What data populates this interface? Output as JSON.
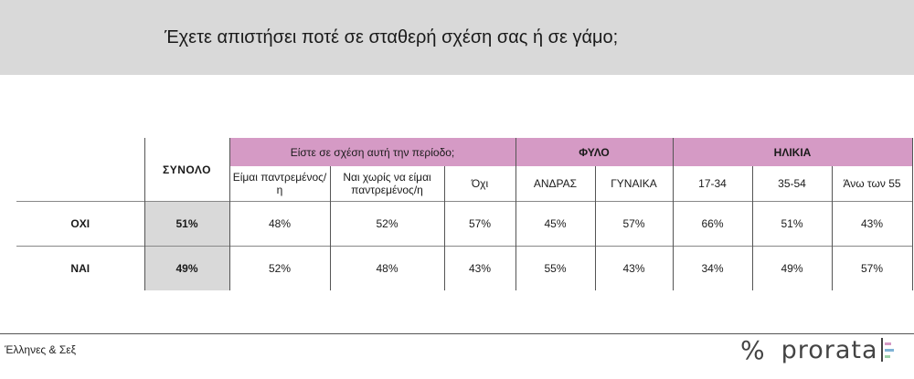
{
  "title": "Έχετε απιστήσει ποτέ σε σταθερή σχέση σας ή σε γάμο;",
  "chart_data": {
    "type": "table",
    "total_header": "ΣΥΝΟΛΟ",
    "groups": [
      {
        "label": "Είστε σε σχέση αυτή την περίοδο;",
        "columns": [
          "Είμαι παντρεμένος/η",
          "Ναι χωρίς να είμαι παντρεμένος/η",
          "Όχι"
        ]
      },
      {
        "label": "ΦΥΛΟ",
        "columns": [
          "ΑΝΔΡΑΣ",
          "ΓΥΝΑΙΚΑ"
        ]
      },
      {
        "label": "ΗΛΙΚΙΑ",
        "columns": [
          "17-34",
          "35-54",
          "Άνω των 55"
        ]
      }
    ],
    "rows": [
      {
        "label": "ΟΧΙ",
        "total": "51%",
        "values": [
          "48%",
          "52%",
          "57%",
          "45%",
          "57%",
          "66%",
          "51%",
          "43%"
        ]
      },
      {
        "label": "ΝΑΙ",
        "total": "49%",
        "values": [
          "52%",
          "48%",
          "43%",
          "55%",
          "43%",
          "34%",
          "49%",
          "57%"
        ]
      }
    ]
  },
  "footer": {
    "source": "Έλληνες & Σεξ",
    "brand_icon": "percent-icon",
    "brand_name": "prorata"
  },
  "colors": {
    "header_pink": "#d59ac5",
    "title_bg": "#d9d9d9",
    "total_bg": "#d9d9d9",
    "brand_bars": [
      "#d59ac5",
      "#7fb3d5",
      "#9bd0a8"
    ]
  }
}
